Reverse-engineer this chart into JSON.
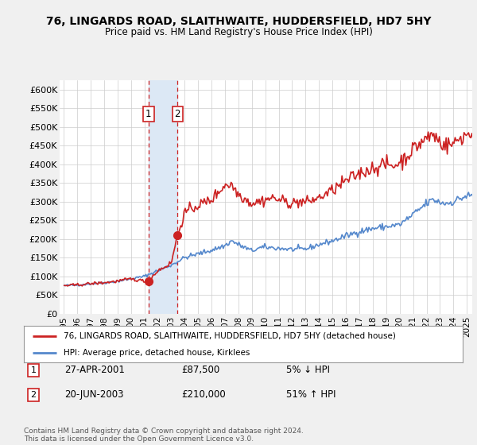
{
  "title1": "76, LINGARDS ROAD, SLAITHWAITE, HUDDERSFIELD, HD7 5HY",
  "title2": "Price paid vs. HM Land Registry's House Price Index (HPI)",
  "legend_label1": "76, LINGARDS ROAD, SLAITHWAITE, HUDDERSFIELD, HD7 5HY (detached house)",
  "legend_label2": "HPI: Average price, detached house, Kirklees",
  "footnote": "Contains HM Land Registry data © Crown copyright and database right 2024.\nThis data is licensed under the Open Government Licence v3.0.",
  "sale1_date": "27-APR-2001",
  "sale1_price": "£87,500",
  "sale1_hpi": "5% ↓ HPI",
  "sale1_x": 2001.32,
  "sale1_y": 87500,
  "sale2_date": "20-JUN-2003",
  "sale2_price": "£210,000",
  "sale2_hpi": "51% ↑ HPI",
  "sale2_x": 2003.47,
  "sale2_y": 210000,
  "hpi_color": "#5588cc",
  "price_color": "#cc2222",
  "background_color": "#f0f0f0",
  "plot_bg_color": "#ffffff",
  "highlight_color": "#dce8f5",
  "ylim": [
    0,
    625000
  ],
  "yticks": [
    0,
    50000,
    100000,
    150000,
    200000,
    250000,
    300000,
    350000,
    400000,
    450000,
    500000,
    550000,
    600000
  ],
  "ytick_labels": [
    "£0",
    "£50K",
    "£100K",
    "£150K",
    "£200K",
    "£250K",
    "£300K",
    "£350K",
    "£400K",
    "£450K",
    "£500K",
    "£550K",
    "£600K"
  ],
  "xtick_years": [
    1995,
    1996,
    1997,
    1998,
    1999,
    2000,
    2001,
    2002,
    2003,
    2004,
    2005,
    2006,
    2007,
    2008,
    2009,
    2010,
    2011,
    2012,
    2013,
    2014,
    2015,
    2016,
    2017,
    2018,
    2019,
    2020,
    2021,
    2022,
    2023,
    2024,
    2025
  ]
}
